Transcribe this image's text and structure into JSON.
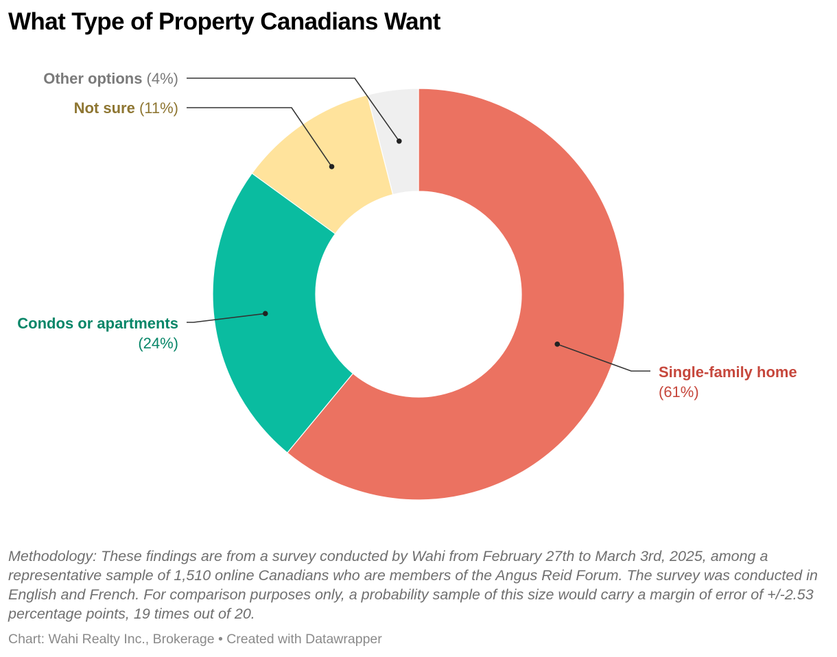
{
  "chart_data": {
    "type": "pie",
    "variant": "donut",
    "title": "What Type of Property Canadians Want",
    "slices": [
      {
        "name": "Single-family home",
        "value": 61,
        "pct_label": "(61%)",
        "color": "#EB7261",
        "label_color": "#C6473C"
      },
      {
        "name": "Condos or apartments",
        "value": 24,
        "pct_label": "(24%)",
        "color": "#0ABCA0",
        "label_color": "#078668"
      },
      {
        "name": "Not sure",
        "value": 11,
        "pct_label": "(11%)",
        "color": "#FFE39C",
        "label_color": "#8E7632"
      },
      {
        "name": "Other options",
        "value": 4,
        "pct_label": "(4%)",
        "color": "#EFEFEF",
        "label_color": "#7A7A7A"
      }
    ]
  },
  "notes": "Methodology: These findings are from a survey conducted by Wahi from February 27th to March 3rd, 2025, among a representative sample of 1,510 online Canadians who are members of the Angus Reid Forum. The survey was conducted in English and French. For comparison purposes only, a probability sample of this size would carry a margin of error of +/-2.53 percentage points, 19 times out of 20.",
  "footer": "Chart: Wahi Realty Inc., Brokerage • Created with Datawrapper"
}
